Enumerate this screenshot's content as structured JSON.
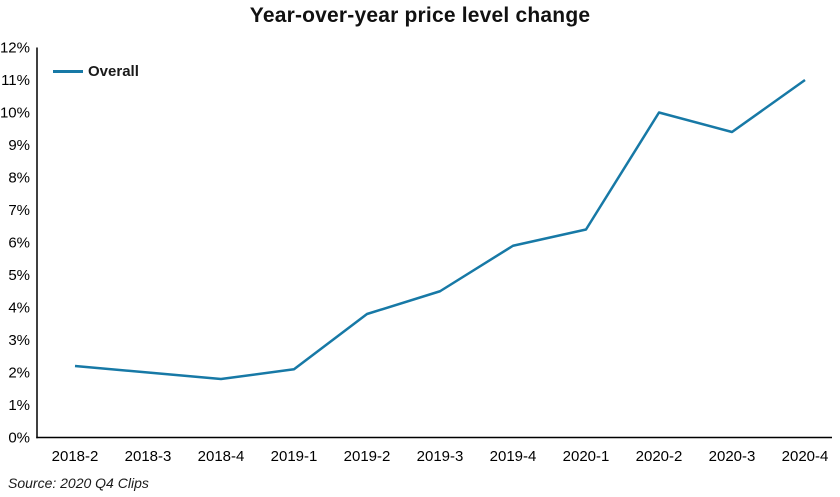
{
  "chart_data": {
    "type": "line",
    "title": "Year-over-year price level change",
    "categories": [
      "2018-2",
      "2018-3",
      "2018-4",
      "2019-1",
      "2019-2",
      "2019-3",
      "2019-4",
      "2020-1",
      "2020-2",
      "2020-3",
      "2020-4"
    ],
    "series": [
      {
        "name": "Overall",
        "color": "#1779a6",
        "values": [
          2.2,
          2.0,
          1.8,
          2.1,
          3.8,
          4.5,
          5.9,
          6.4,
          10.0,
          9.4,
          11.0
        ]
      }
    ],
    "xlabel": "",
    "ylabel": "",
    "ylim": [
      0,
      12
    ],
    "ytick_step": 1,
    "ytick_suffix": "%",
    "grid": false,
    "legend_position": "top-left",
    "axis_color": "#000000"
  },
  "source_note": "Source: 2020 Q4 Clips"
}
